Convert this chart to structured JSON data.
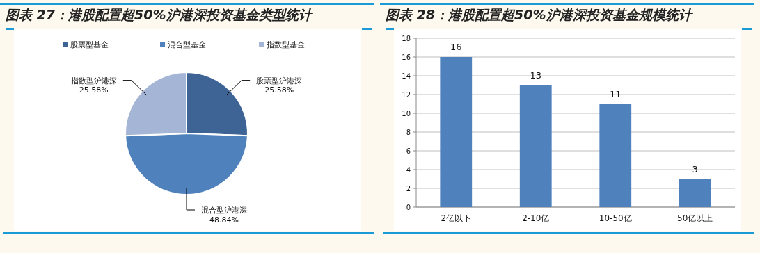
{
  "chart_data": [
    {
      "type": "pie",
      "title": "图表 27：港股配置超50%沪港深投资基金类型统计",
      "categories": [
        "股票型基金",
        "混合型基金",
        "指数型基金"
      ],
      "values": [
        25.58,
        48.84,
        25.58
      ],
      "colors": [
        "#3e6496",
        "#4f81bd",
        "#a5b5d6"
      ],
      "value_labels": [
        "股票型沪港深\n25.58%",
        "混合型沪港深\n48.84%",
        "指数型沪港深\n25.58%"
      ],
      "legend": "top"
    },
    {
      "type": "bar",
      "title": "图表 28：港股配置超50%沪港深投资基金规模统计",
      "categories": [
        "2亿以下",
        "2-10亿",
        "10-50亿",
        "50亿以上"
      ],
      "values": [
        16,
        13,
        11,
        3
      ],
      "color": "#4f81bd",
      "ylim": [
        0,
        18
      ],
      "yticks": [
        0,
        2,
        4,
        6,
        8,
        10,
        12,
        14,
        16,
        18
      ],
      "grid": "y",
      "data_labels": true
    }
  ]
}
